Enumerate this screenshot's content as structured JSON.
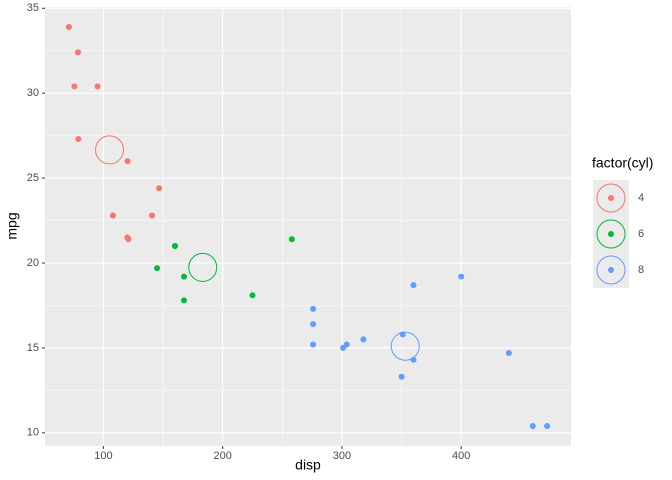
{
  "chart_data": {
    "type": "scatter",
    "x_label": "disp",
    "y_label": "mpg",
    "legend_title": "factor(cyl)",
    "xlim": [
      51.05,
      492.05
    ],
    "ylim": [
      9.225,
      35.075
    ],
    "xticks": [
      100,
      200,
      300,
      400
    ],
    "yticks": [
      10,
      15,
      20,
      25,
      30,
      35
    ],
    "grid": true,
    "legend_position": "right",
    "series": [
      {
        "name": "4",
        "color": "#F8766D",
        "x": [
          108,
          146.7,
          140.8,
          78.7,
          75.7,
          71.1,
          120.1,
          79,
          120.3,
          95.1,
          121
        ],
        "values": [
          22.8,
          24.4,
          22.8,
          32.4,
          30.4,
          33.9,
          21.5,
          27.3,
          26,
          30.4,
          21.4
        ],
        "mean_x": 105.14,
        "mean_y": 26.66
      },
      {
        "name": "6",
        "color": "#00BA38",
        "x": [
          160,
          160,
          258,
          225,
          167.6,
          167.6,
          145
        ],
        "values": [
          21,
          21,
          21.4,
          18.1,
          19.2,
          17.8,
          19.7
        ],
        "mean_x": 183.31,
        "mean_y": 19.74
      },
      {
        "name": "8",
        "color": "#619CFF",
        "x": [
          360,
          360,
          275.8,
          275.8,
          275.8,
          472,
          460,
          440,
          318,
          304,
          350,
          400,
          351,
          301
        ],
        "values": [
          18.7,
          14.3,
          16.4,
          17.3,
          15.2,
          10.4,
          10.4,
          14.7,
          15.5,
          15.2,
          13.3,
          19.2,
          15.8,
          15
        ],
        "mean_x": 353.1,
        "mean_y": 15.1
      }
    ]
  }
}
